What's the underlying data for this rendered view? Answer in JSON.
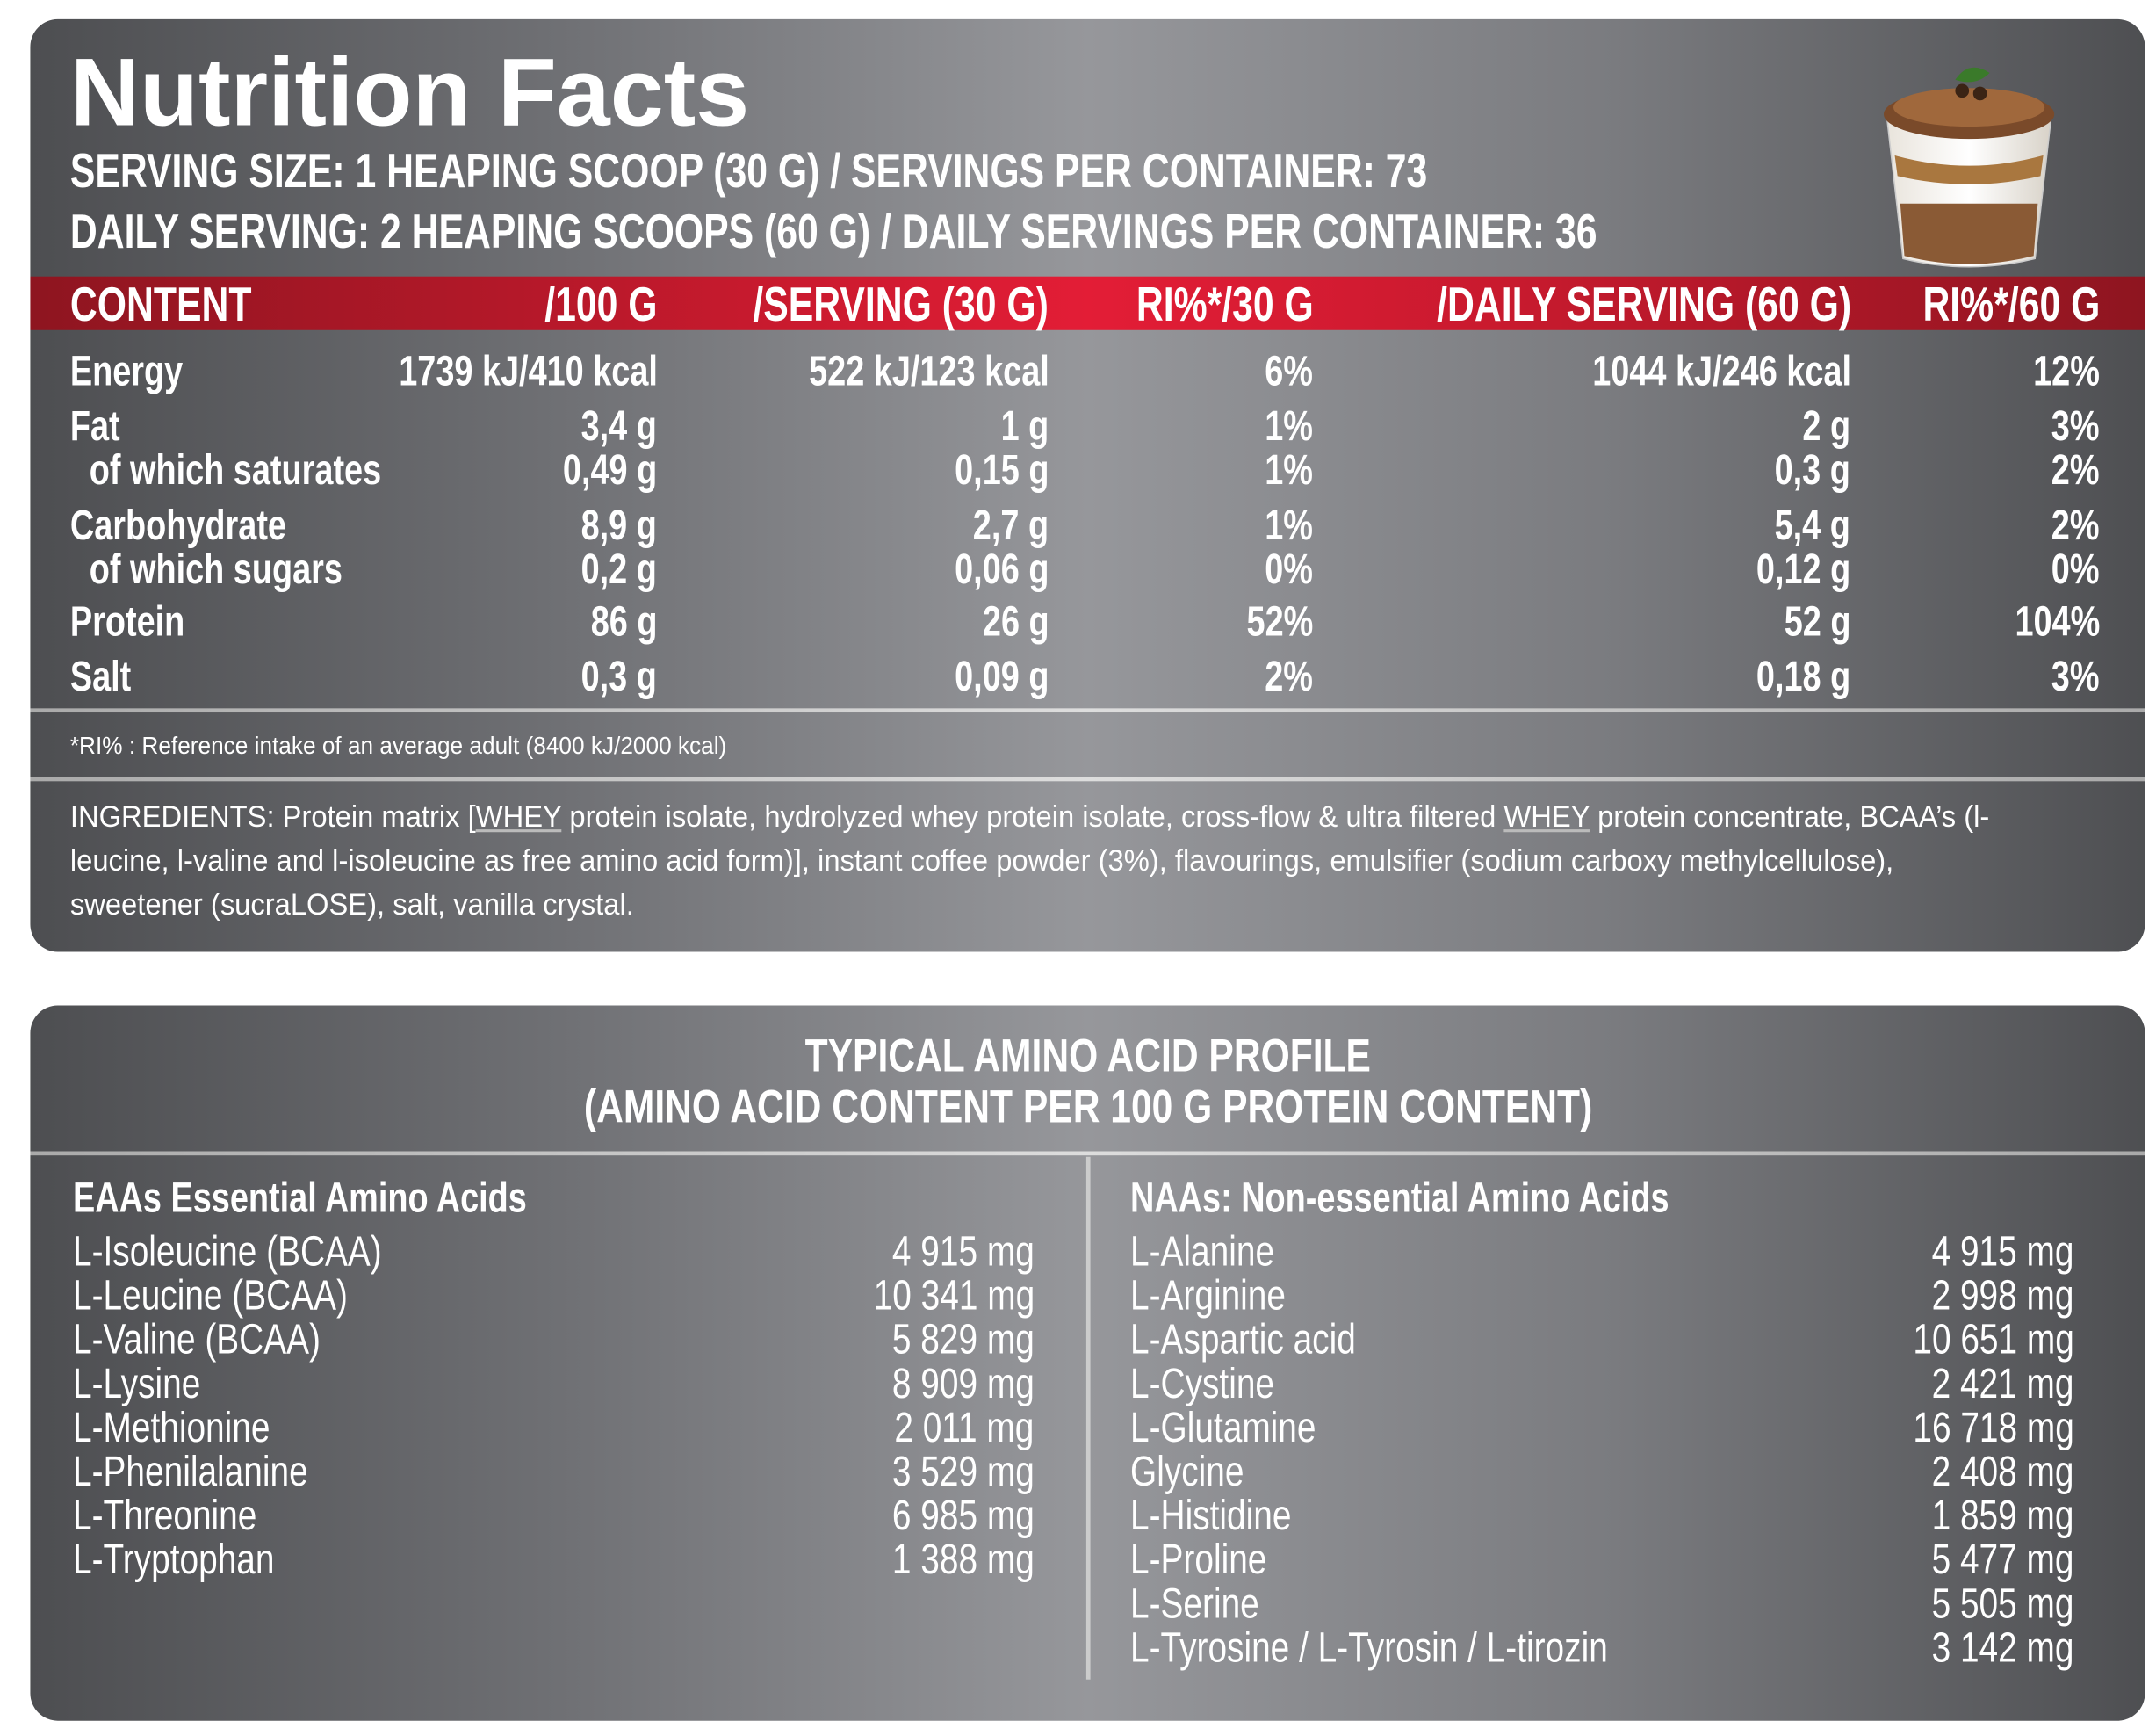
{
  "title": "Nutrition Facts",
  "serving_line": "SERVING SIZE: 1 HEAPING SCOOP  (30 G) / SERVINGS PER CONTAINER: 73",
  "daily_line": "DAILY SERVING: 2 HEAPING SCOOPS (60 G) / DAILY SERVINGS PER CONTAINER: 36",
  "headers": [
    "CONTENT",
    "/100 G",
    "/SERVING (30 G)",
    "RI%*/30 G",
    "/DAILY SERVING (60 G)",
    "RI%*/60 G"
  ],
  "rows": [
    {
      "name": "Energy",
      "indent": false,
      "v": [
        "1739 kJ/410 kcal",
        "522 kJ/123 kcal",
        "6%",
        "1044 kJ/246 kcal",
        "12%"
      ]
    },
    {
      "name": "Fat",
      "indent": false,
      "v": [
        "3,4 g",
        "1 g",
        "1%",
        "2 g",
        "3%"
      ]
    },
    {
      "name": "of which saturates",
      "indent": true,
      "v": [
        "0,49 g",
        "0,15 g",
        "1%",
        "0,3 g",
        "2%"
      ]
    },
    {
      "name": "Carbohydrate",
      "indent": false,
      "v": [
        "8,9 g",
        "2,7 g",
        "1%",
        "5,4 g",
        "2%"
      ]
    },
    {
      "name": "of which sugars",
      "indent": true,
      "v": [
        "0,2 g",
        "0,06 g",
        "0%",
        "0,12 g",
        "0%"
      ]
    },
    {
      "name": "Protein",
      "indent": false,
      "v": [
        "86 g",
        "26 g",
        "52%",
        "52 g",
        "104%"
      ]
    },
    {
      "name": "Salt",
      "indent": false,
      "v": [
        "0,3 g",
        "0,09 g",
        "2%",
        "0,18 g",
        "3%"
      ]
    }
  ],
  "footnote": "*RI% : Reference intake of an average adult (8400 kJ/2000 kcal)",
  "ingredients": {
    "p1": "INGREDIENTS: Protein matrix [",
    "whey1": "WHEY",
    "p2": " protein isolate, hydrolyzed whey protein isolate, cross-flow & ultra filtered ",
    "whey2": "WHEY",
    "p3": " protein concentrate, BCAA’s (l-leucine, l-valine and l-isoleucine as free amino acid form)], instant coffee powder (3%), flavourings, emulsifier (sodium carboxy methylcellulose), sweetener (sucraLOSE), salt, vanilla crystal."
  },
  "amino": {
    "title1": "TYPICAL AMINO ACID PROFILE",
    "title2": "(AMINO ACID CONTENT PER 100 G PROTEIN CONTENT)",
    "eaa_title": "EAAs Essential Amino Acids",
    "naa_title": "NAAs: Non-essential Amino Acids",
    "eaa": [
      [
        "L-Isoleucine (BCAA)",
        "4 915 mg"
      ],
      [
        "L-Leucine (BCAA)",
        "10 341 mg"
      ],
      [
        "L-Valine (BCAA)",
        "5 829 mg"
      ],
      [
        "L-Lysine",
        "8 909 mg"
      ],
      [
        "L-Methionine",
        "2 011 mg"
      ],
      [
        "L-Phenilalanine",
        "3 529 mg"
      ],
      [
        "L-Threonine",
        "6 985 mg"
      ],
      [
        "L-Tryptophan",
        "1 388 mg"
      ]
    ],
    "naa": [
      [
        "L-Alanine",
        "4 915 mg"
      ],
      [
        "L-Arginine",
        "2 998 mg"
      ],
      [
        "L-Aspartic acid",
        "10 651 mg"
      ],
      [
        "L-Cystine",
        "2 421 mg"
      ],
      [
        "L-Glutamine",
        "16 718 mg"
      ],
      [
        "Glycine",
        "2 408 mg"
      ],
      [
        "L-Histidine",
        "1 859 mg"
      ],
      [
        "L-Proline",
        "5 477 mg"
      ],
      [
        "L-Serine",
        "5 505 mg"
      ],
      [
        "L-Tyrosine / L-Tyrosin / L-tirozin",
        "3 142 mg"
      ]
    ]
  }
}
